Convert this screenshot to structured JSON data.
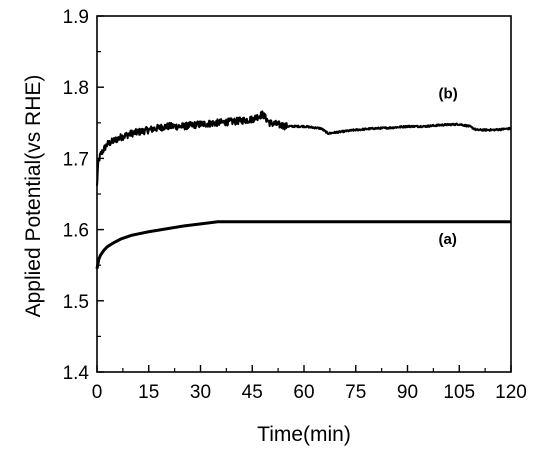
{
  "chart_data": {
    "type": "line",
    "xlabel": "Time(min)",
    "ylabel": "Applied Potential(vs RHE)",
    "xlim": [
      0,
      120
    ],
    "ylim": [
      1.4,
      1.9
    ],
    "x_ticks": [
      "0",
      "15",
      "30",
      "45",
      "60",
      "75",
      "90",
      "105",
      "120"
    ],
    "y_ticks": [
      "1.4",
      "1.5",
      "1.6",
      "1.7",
      "1.8",
      "1.9"
    ],
    "grid": false,
    "line_color": "#000000",
    "annotations": [
      {
        "text": "(b)",
        "series": "b"
      },
      {
        "text": "(a)",
        "series": "a"
      }
    ],
    "series": [
      {
        "id": "a",
        "noise": 0.0,
        "x": [
          0,
          0.5,
          1,
          2,
          3,
          5,
          7,
          10,
          15,
          20,
          25,
          30,
          35,
          40,
          50,
          60,
          75,
          90,
          105,
          120
        ],
        "y": [
          1.545,
          1.558,
          1.564,
          1.571,
          1.576,
          1.582,
          1.587,
          1.592,
          1.597,
          1.601,
          1.605,
          1.608,
          1.611,
          1.611,
          1.611,
          1.611,
          1.611,
          1.611,
          1.611,
          1.611
        ]
      },
      {
        "id": "b",
        "noise": 0.005,
        "x": [
          0,
          0.3,
          0.7,
          1,
          2,
          3,
          5,
          7,
          10,
          15,
          20,
          25,
          30,
          35,
          40,
          45,
          48,
          50,
          55,
          60,
          65,
          67,
          70,
          75,
          80,
          85,
          90,
          95,
          100,
          105,
          108,
          110,
          115,
          120
        ],
        "y": [
          1.66,
          1.69,
          1.7,
          1.705,
          1.713,
          1.72,
          1.725,
          1.73,
          1.735,
          1.74,
          1.745,
          1.745,
          1.748,
          1.75,
          1.752,
          1.755,
          1.762,
          1.75,
          1.745,
          1.745,
          1.742,
          1.735,
          1.737,
          1.74,
          1.742,
          1.743,
          1.745,
          1.745,
          1.747,
          1.748,
          1.745,
          1.74,
          1.74,
          1.742
        ]
      }
    ]
  }
}
